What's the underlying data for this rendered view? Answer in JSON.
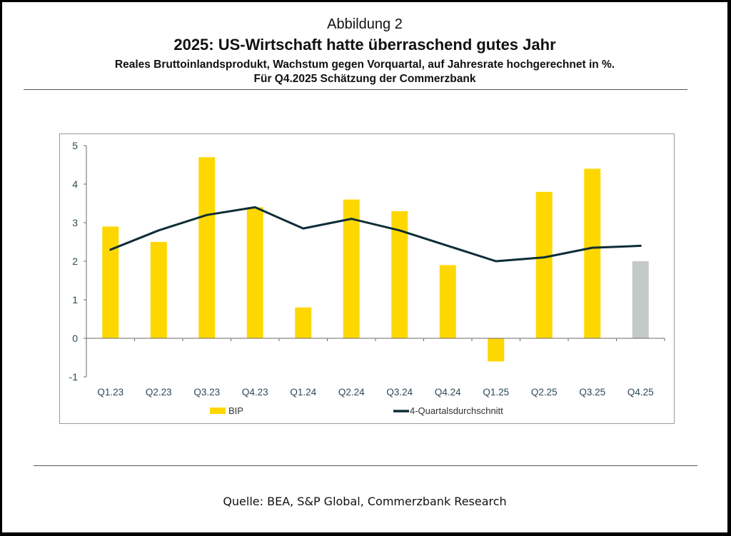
{
  "figure": {
    "label": "Abbildung 2",
    "title": "2025: US-Wirtschaft hatte überraschend gutes Jahr",
    "subtitle_line1": "Reales Bruttoinlandsprodukt, Wachstum gegen Vorquartal, auf Jahresrate hochgerechnet in %.",
    "subtitle_line2": "Für Q4.2025 Schätzung der Commerzbank",
    "source": "Quelle: BEA, S&P Global, Commerzbank Research"
  },
  "colors": {
    "bar": "#FFD700",
    "bar_estimate": "#C3CAC7",
    "line": "#0E2D36",
    "axis": "#6b6b6b",
    "tick_label": "#2E4A54"
  },
  "chart_data": {
    "type": "bar",
    "title": "2025: US-Wirtschaft hatte überraschend gutes Jahr",
    "xlabel": "",
    "ylabel": "",
    "ylim": [
      -1,
      5
    ],
    "yticks": [
      5,
      4,
      3,
      2,
      1,
      0,
      -1
    ],
    "grid": false,
    "legend_position": "bottom",
    "categories": [
      "Q1.23",
      "Q2.23",
      "Q3.23",
      "Q4.23",
      "Q1.24",
      "Q2.24",
      "Q3.24",
      "Q4.24",
      "Q1.25",
      "Q2.25",
      "Q3.25",
      "Q4.25"
    ],
    "series": [
      {
        "name": "BIP",
        "type": "bar",
        "values": [
          2.9,
          2.5,
          4.7,
          3.4,
          0.8,
          3.6,
          3.3,
          1.9,
          -0.6,
          3.8,
          4.4,
          2.0
        ],
        "estimate_index": [
          11
        ]
      },
      {
        "name": "4-Quartalsdurchschnitt",
        "type": "line",
        "values": [
          2.3,
          2.8,
          3.2,
          3.4,
          2.85,
          3.1,
          2.8,
          2.4,
          2.0,
          2.1,
          2.35,
          2.4
        ]
      }
    ]
  }
}
